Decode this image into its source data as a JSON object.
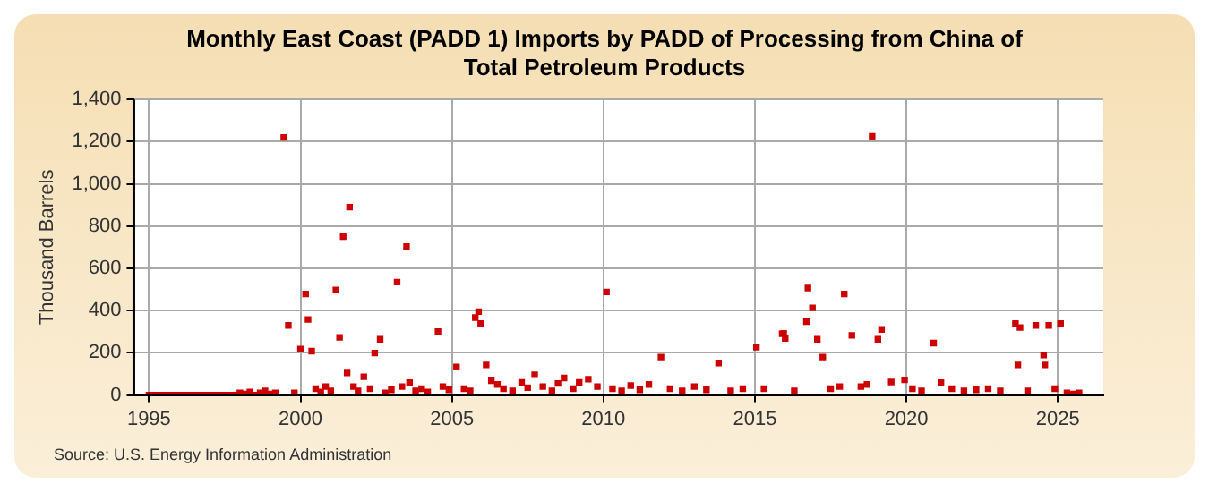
{
  "chart_data": {
    "type": "scatter",
    "title": "Monthly East Coast (PADD 1) Imports by PADD of Processing from China of Total Petroleum Products",
    "ylabel": "Thousand Barrels",
    "annotations": [
      "Source: U.S. Energy Information Administration"
    ],
    "x": [
      1995,
      1995.17,
      1995.33,
      1995.5,
      1995.67,
      1995.83,
      1996,
      1996.17,
      1996.33,
      1996.5,
      1996.67,
      1996.83,
      1997,
      1997.17,
      1997.33,
      1997.5,
      1997.67,
      1997.83,
      1998,
      1998.17,
      1998.33,
      1998.5,
      1998.67,
      1998.83,
      1999,
      1999.17,
      1999.45,
      1999.6,
      1999.8,
      2000,
      2000.17,
      2000.25,
      2000.37,
      2000.5,
      2000.67,
      2000.83,
      2001,
      2001.17,
      2001.29,
      2001.41,
      2001.54,
      2001.62,
      2001.75,
      2001.9,
      2002.09,
      2002.3,
      2002.45,
      2002.63,
      2002.8,
      2003,
      2003.19,
      2003.35,
      2003.5,
      2003.6,
      2003.8,
      2004,
      2004.2,
      2004.54,
      2004.7,
      2004.9,
      2005.15,
      2005.4,
      2005.6,
      2005.77,
      2005.88,
      2005.95,
      2006.13,
      2006.3,
      2006.5,
      2006.7,
      2007,
      2007.3,
      2007.5,
      2007.73,
      2008,
      2008.3,
      2008.5,
      2008.7,
      2009,
      2009.2,
      2009.5,
      2009.8,
      2010.1,
      2010.3,
      2010.6,
      2010.9,
      2011.2,
      2011.5,
      2011.9,
      2012.2,
      2012.6,
      2013,
      2013.4,
      2013.8,
      2014.2,
      2014.6,
      2015.05,
      2015.3,
      2015.9,
      2015.95,
      2016.0,
      2016.3,
      2016.7,
      2016.75,
      2016.9,
      2017.06,
      2017.24,
      2017.5,
      2017.8,
      2017.95,
      2018.2,
      2018.5,
      2018.7,
      2018.87,
      2019.06,
      2019.18,
      2019.5,
      2019.94,
      2020.2,
      2020.5,
      2020.9,
      2021.14,
      2021.5,
      2021.9,
      2022.3,
      2022.7,
      2023.1,
      2023.6,
      2023.68,
      2023.75,
      2024,
      2024.27,
      2024.53,
      2024.57,
      2024.7,
      2024.9,
      2025.09,
      2025.3,
      2025.5,
      2025.7
    ],
    "values": [
      0,
      0,
      0,
      0,
      0,
      0,
      0,
      0,
      0,
      0,
      0,
      0,
      0,
      0,
      0,
      0,
      0,
      0,
      10,
      5,
      15,
      0,
      10,
      20,
      5,
      10,
      1220,
      330,
      10,
      218,
      479,
      358,
      208,
      30,
      15,
      40,
      20,
      498,
      273,
      750,
      105,
      890,
      40,
      20,
      87,
      30,
      199,
      264,
      10,
      25,
      535,
      40,
      703,
      59,
      20,
      30,
      15,
      301,
      40,
      25,
      133,
      30,
      20,
      367,
      395,
      339,
      143,
      68,
      50,
      30,
      20,
      60,
      35,
      96,
      40,
      20,
      55,
      81,
      30,
      60,
      75,
      40,
      488,
      30,
      20,
      45,
      25,
      50,
      180,
      30,
      20,
      40,
      25,
      152,
      20,
      30,
      227,
      30,
      290,
      292,
      268,
      20,
      348,
      507,
      413,
      264,
      180,
      30,
      40,
      479,
      283,
      40,
      50,
      1225,
      264,
      311,
      62,
      72,
      30,
      20,
      246,
      59,
      30,
      20,
      25,
      30,
      20,
      339,
      143,
      320,
      20,
      330,
      190,
      143,
      330,
      30,
      339,
      10,
      5,
      10
    ],
    "color": "#cc0000",
    "marker": "square",
    "grid": true,
    "xlim": [
      1994.5,
      2026.5
    ],
    "xticks": [
      1995,
      2000,
      2005,
      2010,
      2015,
      2020,
      2025
    ],
    "ylim": [
      0,
      1400
    ],
    "yticks": [
      0,
      200,
      400,
      600,
      800,
      {
        "value": 1000,
        "label": "1,000"
      },
      {
        "value": 1200,
        "label": "1,200"
      },
      {
        "value": 1400,
        "label": "1,400"
      }
    ]
  }
}
